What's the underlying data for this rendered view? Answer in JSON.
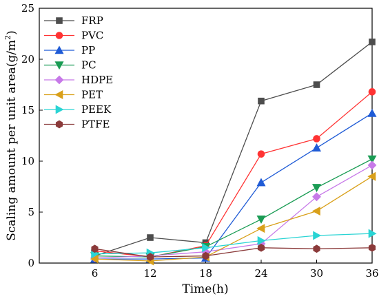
{
  "chart_data": {
    "type": "line",
    "title": "",
    "xlabel": "Time(h)",
    "ylabel_prefix": "Scaling amount per unit area(g/m",
    "ylabel_sup": "2",
    "ylabel_suffix": ")",
    "x": [
      6,
      12,
      18,
      24,
      30,
      36
    ],
    "xticks": [
      6,
      12,
      18,
      24,
      30,
      36
    ],
    "xlim": [
      0,
      36
    ],
    "ylim": [
      0,
      25
    ],
    "yticks": [
      0,
      5,
      10,
      15,
      20,
      25
    ],
    "grid": false,
    "legend_position": "top-left",
    "series": [
      {
        "name": "FRP",
        "color": "#4d4d4d",
        "marker": "square",
        "values": [
          0.7,
          2.5,
          2.0,
          15.9,
          17.5,
          21.7
        ]
      },
      {
        "name": "PVC",
        "color": "#ff3333",
        "marker": "circle",
        "values": [
          1.2,
          0.6,
          1.7,
          10.7,
          12.2,
          16.8
        ]
      },
      {
        "name": "PP",
        "color": "#1f5bd6",
        "marker": "triangle-up",
        "values": [
          0.4,
          0.4,
          0.5,
          7.9,
          11.3,
          14.7
        ]
      },
      {
        "name": "PC",
        "color": "#1a9c54",
        "marker": "triangle-down",
        "values": [
          0.7,
          0.6,
          1.6,
          4.3,
          7.4,
          10.2
        ]
      },
      {
        "name": "HDPE",
        "color": "#c779e8",
        "marker": "diamond",
        "values": [
          0.5,
          0.7,
          1.1,
          1.9,
          6.5,
          9.6
        ]
      },
      {
        "name": "PET",
        "color": "#d9a01a",
        "marker": "triangle-left",
        "values": [
          0.4,
          0.2,
          0.6,
          3.4,
          5.1,
          8.5
        ]
      },
      {
        "name": "PEEK",
        "color": "#2ad4d4",
        "marker": "triangle-right",
        "values": [
          0.9,
          1.0,
          1.5,
          2.2,
          2.7,
          2.9
        ]
      },
      {
        "name": "PTFE",
        "color": "#8b3a3a",
        "marker": "hexagon",
        "values": [
          1.4,
          0.6,
          0.7,
          1.5,
          1.4,
          1.5
        ]
      }
    ]
  }
}
